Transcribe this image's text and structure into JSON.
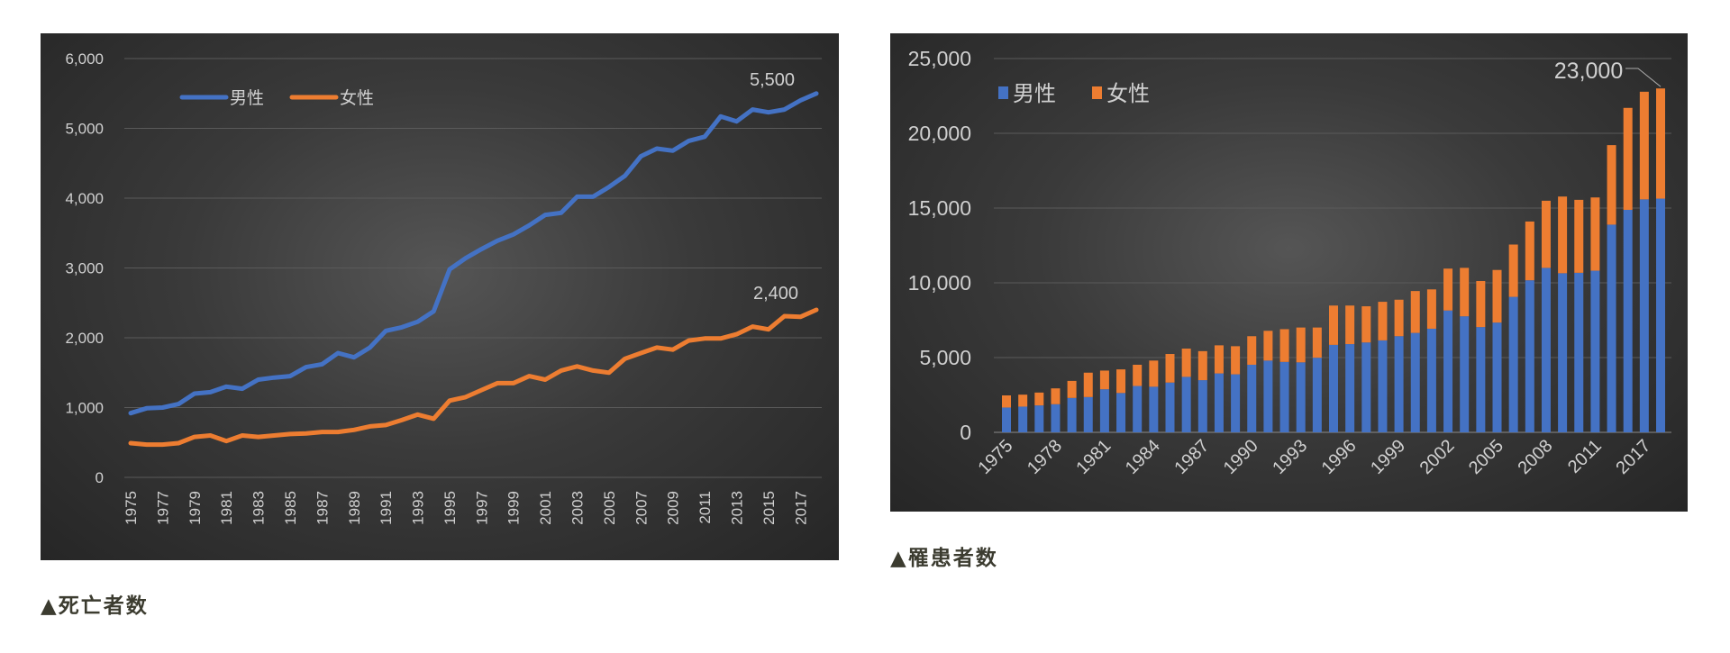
{
  "colors": {
    "male": "#4472c4",
    "female": "#ed7d31",
    "grid": "#5a5a5a",
    "text": "#d0d0d0"
  },
  "captions": {
    "deaths": "▲死亡者数",
    "incidence": "▲罹患者数"
  },
  "chart_data": [
    {
      "type": "line",
      "title": "",
      "caption": "▲死亡者数",
      "x": [
        1975,
        1976,
        1977,
        1978,
        1979,
        1980,
        1981,
        1982,
        1983,
        1984,
        1985,
        1986,
        1987,
        1988,
        1989,
        1990,
        1991,
        1992,
        1993,
        1994,
        1995,
        1996,
        1997,
        1998,
        1999,
        2000,
        2001,
        2002,
        2003,
        2004,
        2005,
        2006,
        2007,
        2008,
        2009,
        2010,
        2011,
        2012,
        2013,
        2014,
        2015,
        2016,
        2017,
        2018
      ],
      "x_tick_labels": [
        "1975",
        "1977",
        "1979",
        "1981",
        "1983",
        "1985",
        "1987",
        "1989",
        "1991",
        "1993",
        "1995",
        "1997",
        "1999",
        "2001",
        "2003",
        "2005",
        "2007",
        "2009",
        "2011",
        "2013",
        "2015",
        "2017"
      ],
      "y_tick_labels": [
        "0",
        "1,000",
        "2,000",
        "3,000",
        "4,000",
        "5,000",
        "6,000"
      ],
      "ylim": [
        0,
        6000
      ],
      "grid": true,
      "legend": {
        "position": "top-left",
        "entries": [
          "男性",
          "女性"
        ]
      },
      "series": [
        {
          "name": "男性",
          "values": [
            920,
            990,
            1000,
            1050,
            1200,
            1220,
            1300,
            1270,
            1400,
            1430,
            1450,
            1580,
            1620,
            1780,
            1720,
            1860,
            2100,
            2150,
            2230,
            2380,
            2980,
            3140,
            3270,
            3390,
            3480,
            3610,
            3760,
            3790,
            4020,
            4020,
            4160,
            4320,
            4600,
            4710,
            4680,
            4820,
            4880,
            5170,
            5100,
            5270,
            5230,
            5270,
            5400,
            5500
          ]
        },
        {
          "name": "女性",
          "values": [
            490,
            470,
            470,
            490,
            580,
            600,
            520,
            600,
            580,
            600,
            620,
            630,
            650,
            650,
            680,
            730,
            750,
            820,
            900,
            840,
            1100,
            1150,
            1250,
            1350,
            1350,
            1450,
            1400,
            1530,
            1590,
            1530,
            1500,
            1700,
            1780,
            1860,
            1830,
            1960,
            1990,
            1990,
            2050,
            2160,
            2120,
            2310,
            2300,
            2400
          ]
        }
      ],
      "annotations": [
        {
          "series": "男性",
          "text": "5,500"
        },
        {
          "series": "女性",
          "text": "2,400"
        }
      ]
    },
    {
      "type": "bar",
      "stacked": true,
      "title": "",
      "caption": "▲罹患者数",
      "bar_count": 41,
      "x_tick_labels": [
        "1975",
        "1978",
        "1981",
        "1984",
        "1987",
        "1990",
        "1993",
        "1996",
        "1999",
        "2002",
        "2005",
        "2008",
        "2011",
        "2017"
      ],
      "y_tick_labels": [
        "0",
        "5,000",
        "10,000",
        "15,000",
        "20,000",
        "25,000"
      ],
      "ylim": [
        0,
        25000
      ],
      "grid": true,
      "legend": {
        "position": "top-left",
        "entries": [
          "男性",
          "女性"
        ]
      },
      "series": [
        {
          "name": "男性",
          "values": [
            1660,
            1720,
            1800,
            1880,
            2300,
            2360,
            2880,
            2630,
            3100,
            3050,
            3330,
            3710,
            3490,
            3940,
            3880,
            4520,
            4800,
            4710,
            4680,
            4990,
            5850,
            5900,
            6010,
            6150,
            6430,
            6650,
            6930,
            8150,
            7760,
            7040,
            7340,
            9060,
            10170,
            11000,
            10640,
            10670,
            10810,
            13890,
            14880,
            15580,
            15630
          ]
        },
        {
          "name": "女性",
          "values": [
            810,
            800,
            860,
            1060,
            1140,
            1630,
            1250,
            1580,
            1420,
            1750,
            1910,
            1890,
            1940,
            1880,
            1880,
            1910,
            1990,
            2190,
            2330,
            2020,
            2630,
            2580,
            2420,
            2580,
            2440,
            2800,
            2630,
            2800,
            3240,
            3080,
            3520,
            3500,
            3930,
            4490,
            5130,
            4880,
            4900,
            5320,
            6820,
            7200,
            7370
          ]
        }
      ],
      "annotations": [
        {
          "text": "23,000"
        }
      ]
    }
  ]
}
